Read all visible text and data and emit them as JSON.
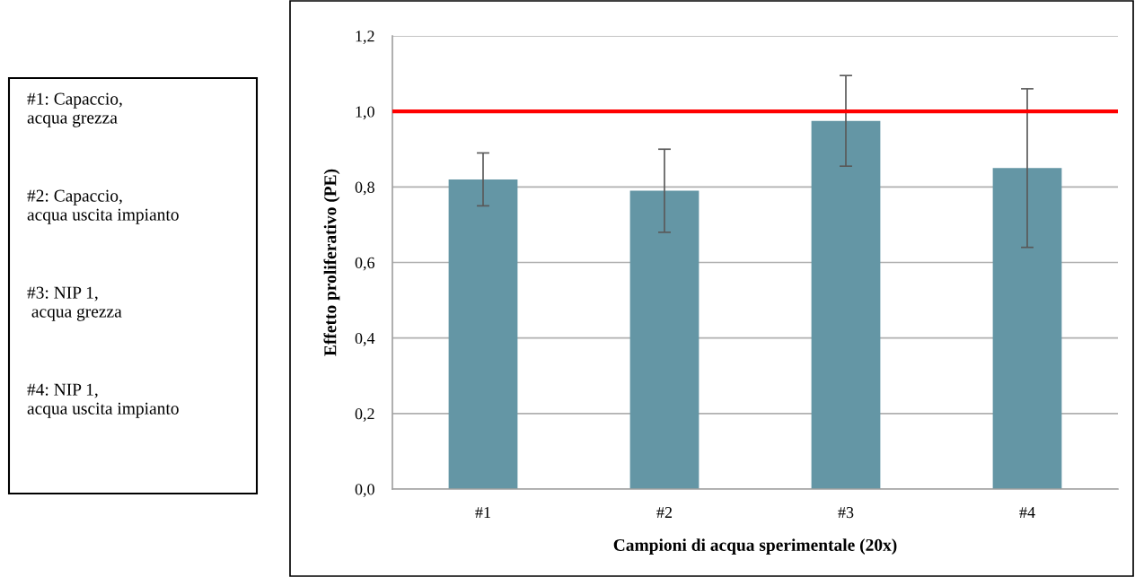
{
  "chart_data": {
    "type": "bar",
    "xlabel": "Campioni di acqua sperimentale (20x)",
    "ylabel": "Effetto proliferativo (PE)",
    "categories": [
      "#1",
      "#2",
      "#3",
      "#4"
    ],
    "values": [
      0.82,
      0.79,
      0.975,
      0.85
    ],
    "errors": [
      0.07,
      0.11,
      0.12,
      0.21
    ],
    "color": "#6496a5",
    "ylim": [
      0,
      1.2
    ],
    "yticks": [
      {
        "value": 0,
        "label": "0,0"
      },
      {
        "value": 0.2,
        "label": "0,2"
      },
      {
        "value": 0.4,
        "label": "0,4"
      },
      {
        "value": 0.6,
        "label": "0,6"
      },
      {
        "value": 0.8,
        "label": "0,8"
      },
      {
        "value": 1.0,
        "label": "1,0"
      },
      {
        "value": 1.2,
        "label": "1,2"
      }
    ],
    "grid": "y",
    "legend": false,
    "ref_lines": [
      {
        "axis": "y",
        "value": 1.0,
        "color": "#ff0000"
      }
    ],
    "annotations": [
      "#1: Capaccio,\nacqua grezza",
      "#2: Capaccio,\nacqua uscita impianto",
      "#3: NIP 1,\n acqua grezza",
      "#4: NIP 1,\nacqua uscita impianto"
    ]
  }
}
